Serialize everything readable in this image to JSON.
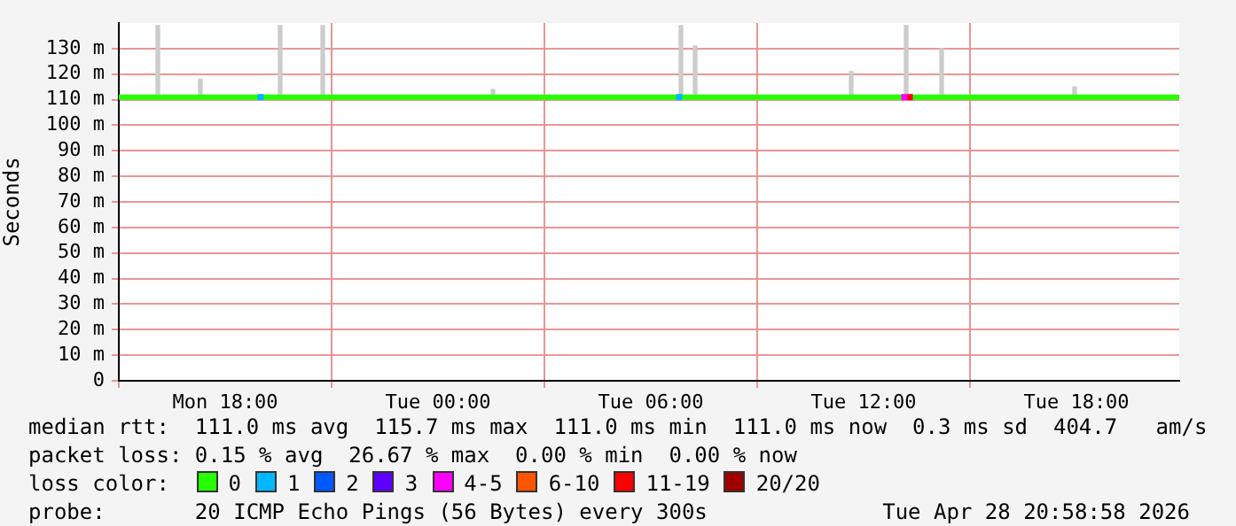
{
  "chart_data": {
    "type": "line",
    "ylabel": "Seconds",
    "legend_title": "loss color:",
    "legend": "bottom",
    "grid": true,
    "xlim": [
      "2026-04-27T15:00",
      "2026-04-28T20:54"
    ],
    "xticks": [
      {
        "value": "2026-04-27T18:00",
        "label": "Mon 18:00"
      },
      {
        "value": "2026-04-28T00:00",
        "label": "Tue 00:00"
      },
      {
        "value": "2026-04-28T06:00",
        "label": "Tue 06:00"
      },
      {
        "value": "2026-04-28T12:00",
        "label": "Tue 12:00"
      },
      {
        "value": "2026-04-28T18:00",
        "label": "Tue 18:00"
      }
    ],
    "ylim": [
      0,
      140
    ],
    "yticks": [
      0,
      {
        "value": 10,
        "label": "10 m"
      },
      {
        "value": 20,
        "label": "20 m"
      },
      {
        "value": 30,
        "label": "30 m"
      },
      {
        "value": 40,
        "label": "40 m"
      },
      {
        "value": 50,
        "label": "50 m"
      },
      {
        "value": 60,
        "label": "60 m"
      },
      {
        "value": 70,
        "label": "70 m"
      },
      {
        "value": 80,
        "label": "80 m"
      },
      {
        "value": 90,
        "label": "90 m"
      },
      {
        "value": 100,
        "label": "100 m"
      },
      {
        "value": 110,
        "label": "110 m"
      },
      {
        "value": 120,
        "label": "120 m"
      },
      {
        "value": 130,
        "label": "130 m"
      }
    ],
    "series": [
      {
        "type": "bar",
        "color": "#cccccc",
        "x": [
          "2026-04-27T16:06",
          "2026-04-27T17:18",
          "2026-04-27T19:33",
          "2026-04-27T20:45",
          "2026-04-28T01:33",
          "2026-04-28T06:51",
          "2026-04-28T07:15",
          "2026-04-28T11:39",
          "2026-04-28T13:12",
          "2026-04-28T14:12",
          "2026-04-28T17:57"
        ],
        "base": [
          111,
          111,
          111,
          111,
          111,
          111,
          111,
          111,
          111,
          111,
          111
        ],
        "values": [
          28,
          7,
          28,
          28,
          3,
          28,
          20,
          10,
          28,
          19,
          4
        ]
      },
      {
        "name": "0",
        "color": "#26ff00",
        "x": [
          "2026-04-27T15:00",
          "2026-04-28T20:54"
        ],
        "values": [
          111,
          111
        ]
      },
      {
        "type": "scatter",
        "name": "1",
        "color": "#00b8ff",
        "marker": "square",
        "x": [
          "2026-04-27T19:00",
          "2026-04-28T06:48"
        ],
        "values": [
          111,
          111
        ]
      },
      {
        "type": "scatter",
        "name": "2",
        "color": "#0059ff",
        "marker": "square"
      },
      {
        "type": "scatter",
        "name": "3",
        "color": "#5e00ff",
        "marker": "square"
      },
      {
        "type": "scatter",
        "name": "4-5",
        "color": "#ff00ff",
        "marker": "square",
        "x": [
          "2026-04-28T13:09"
        ],
        "values": [
          111
        ]
      },
      {
        "type": "scatter",
        "name": "6-10",
        "color": "#ff5500",
        "marker": "square"
      },
      {
        "type": "scatter",
        "name": "11-19",
        "color": "#ff0000",
        "marker": "square",
        "x": [
          "2026-04-28T13:18"
        ],
        "values": [
          111
        ]
      },
      {
        "type": "scatter",
        "name": "20/20",
        "color": "#a10000",
        "marker": "square"
      }
    ],
    "annotations": [
      "median rtt:  111.0 ms avg  115.7 ms max  111.0 ms min  111.0 ms now  0.3 ms sd  404.7   am/s",
      "packet loss: 0.15 % avg  26.67 % max  0.00 % min  0.00 % now",
      "probe:       20 ICMP Echo Pings (56 Bytes) every 300s",
      "Tue Apr 28 20:58:58 2026"
    ]
  }
}
